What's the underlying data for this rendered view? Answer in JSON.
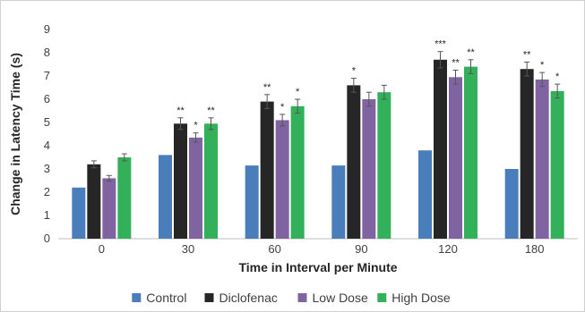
{
  "chart_data": {
    "type": "bar",
    "title": "",
    "xlabel": "Time in Interval per Minute",
    "ylabel": "Change in Latency Time (s)",
    "ylim": [
      0,
      9
    ],
    "yticks": [
      "0",
      "1",
      "2",
      "3",
      "4",
      "5",
      "6",
      "7",
      "8",
      "9"
    ],
    "categories": [
      "0",
      "30",
      "60",
      "90",
      "120",
      "180"
    ],
    "legend_position": "bottom",
    "grid": false,
    "series": [
      {
        "name": "Control",
        "color": "#4a7ebb",
        "values": [
          2.2,
          3.6,
          3.15,
          3.15,
          3.8,
          3.0
        ],
        "errors": [
          0,
          0,
          0,
          0,
          0,
          0
        ],
        "significance": [
          "",
          "",
          "",
          "",
          "",
          ""
        ]
      },
      {
        "name": "Diclofenac",
        "color": "#262626",
        "values": [
          3.2,
          4.95,
          5.9,
          6.6,
          7.7,
          7.3
        ],
        "errors": [
          0.15,
          0.25,
          0.3,
          0.3,
          0.35,
          0.3
        ],
        "significance": [
          "",
          "**",
          "**",
          "*",
          "***",
          "**"
        ]
      },
      {
        "name": "Low Dose",
        "color": "#8064a2",
        "values": [
          2.6,
          4.35,
          5.1,
          6.0,
          6.95,
          6.85
        ],
        "errors": [
          0.12,
          0.2,
          0.25,
          0.3,
          0.3,
          0.3
        ],
        "significance": [
          "",
          "*",
          "*",
          "",
          "**",
          "*"
        ]
      },
      {
        "name": "High Dose",
        "color": "#33b05a",
        "values": [
          3.5,
          4.95,
          5.7,
          6.3,
          7.4,
          6.35
        ],
        "errors": [
          0.15,
          0.25,
          0.3,
          0.3,
          0.3,
          0.3
        ],
        "significance": [
          "",
          "**",
          "*",
          "",
          "**",
          "*"
        ]
      }
    ]
  }
}
